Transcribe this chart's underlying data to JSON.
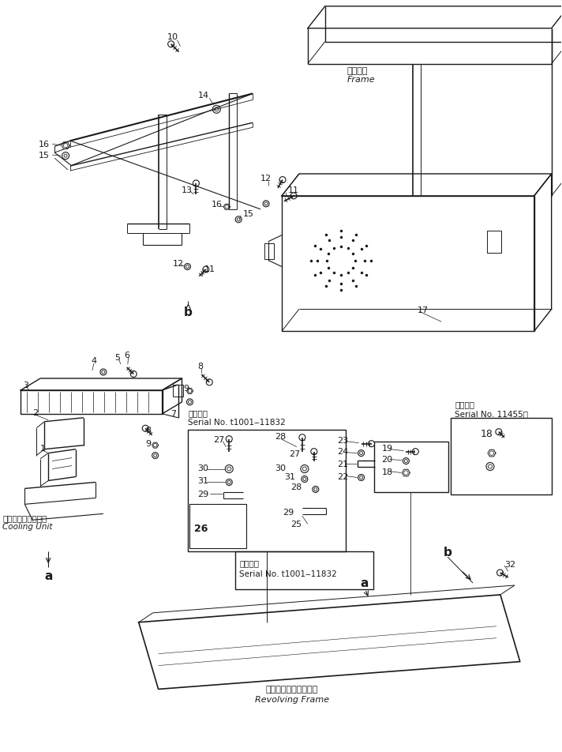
{
  "bg_color": "#ffffff",
  "lc": "#1a1a1a",
  "fig_width": 7.12,
  "fig_height": 9.53,
  "labels": {
    "frame_jp": "フレーム",
    "frame_en": "Frame",
    "cooling_unit_jp": "クーリングユニット",
    "cooling_unit_en": "Cooling Unit",
    "serial_11001_11832_jp": "適用号機",
    "serial_11001_11832_en": "Serial No. t1001‒11832",
    "serial_11455_jp": "適用号機",
    "serial_11455_en": "Serial No. 11455～",
    "revolving_jp": "レボルビングフレーム",
    "revolving_en": "Revolving Frame",
    "serial2_en": "Serial No. 11001～11832"
  }
}
